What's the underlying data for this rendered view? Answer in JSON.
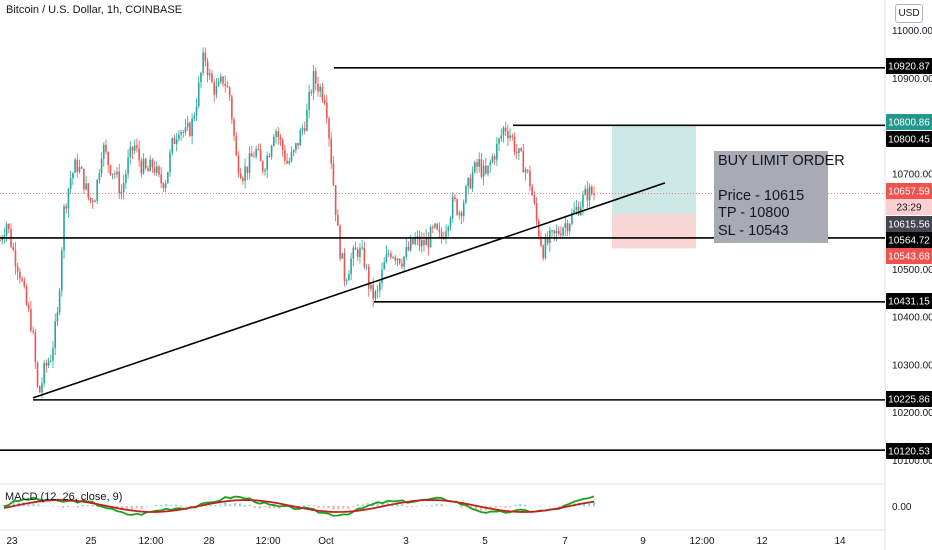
{
  "header": {
    "title": "Bitcoin / U.S. Dollar, 1h, COINBASE",
    "currency_button": "USD"
  },
  "macd_label": "MACD (12, 26, close, 9)",
  "order_box": {
    "title": "BUY LIMIT ORDER",
    "price": "Price - 10615",
    "tp": "TP - 10800",
    "sl": "SL - 10543"
  },
  "colors": {
    "up": "#26a69a",
    "down": "#ef5350",
    "line": "#000000",
    "target_zone": "#cce9e6",
    "stop_zone": "#f9d6d6",
    "tag_teal": "#22998c",
    "tag_red": "#ef5350",
    "tag_dark": "#434651",
    "macd_line": "#1aa31a",
    "signal_line": "#c21f1f"
  },
  "chart_data": {
    "type": "candlestick",
    "ylim": [
      10080,
      11060
    ],
    "y_ticks": [
      11000,
      10900,
      10800,
      10700,
      10600,
      10500,
      10400,
      10300,
      10200,
      10100
    ],
    "y_tick_labels": [
      "11000.00",
      "10900.00",
      "10800.00",
      "10700.00",
      "10600.00",
      "10500.00",
      "10400.00",
      "10300.00",
      "10200.00",
      "10100.00"
    ],
    "x_tick_labels": [
      "23",
      "25",
      "12:00",
      "28",
      "12:00",
      "Oct",
      "3",
      "5",
      "7",
      "9",
      "12:00",
      "12",
      "14"
    ],
    "price_levels": [
      10920.87,
      10800.86,
      10800.45,
      10564.72,
      10431.15,
      10225.86,
      10120.53
    ],
    "price_tags": [
      {
        "label": "10920.87",
        "value": 10920.87,
        "style": "line"
      },
      {
        "label": "10800.86",
        "value": 10800.86,
        "style": "teal"
      },
      {
        "label": "10800.45",
        "value": 10800.45,
        "style": "line"
      },
      {
        "label": "10657.59",
        "value": 10657.59,
        "style": "red"
      },
      {
        "label": "23:29",
        "value": 10631,
        "style": "red-light"
      },
      {
        "label": "10615.56",
        "value": 10615.56,
        "style": "dark"
      },
      {
        "label": "10564.72",
        "value": 10564.72,
        "style": "line"
      },
      {
        "label": "10543.68",
        "value": 10543.68,
        "style": "red"
      },
      {
        "label": "10431.15",
        "value": 10431.15,
        "style": "line"
      },
      {
        "label": "10225.86",
        "value": 10225.86,
        "style": "line"
      },
      {
        "label": "10120.53",
        "value": 10120.53,
        "style": "line"
      }
    ],
    "trendline": {
      "from": [
        10230
      ],
      "to": [
        10680
      ]
    },
    "current_price": 10657.59,
    "limit_order": {
      "entry": 10615,
      "take_profit": 10800,
      "stop_loss": 10543
    },
    "close_path": [
      10560,
      10600,
      10540,
      10500,
      10430,
      10380,
      10230,
      10290,
      10320,
      10400,
      10620,
      10690,
      10720,
      10690,
      10640,
      10660,
      10760,
      10720,
      10700,
      10660,
      10720,
      10760,
      10720,
      10700,
      10720,
      10680,
      10690,
      10760,
      10800,
      10780,
      10800,
      10870,
      10950,
      10890,
      10870,
      10900,
      10860,
      10730,
      10700,
      10720,
      10750,
      10710,
      10740,
      10800,
      10760,
      10720,
      10740,
      10780,
      10820,
      10900,
      10880,
      10860,
      10710,
      10560,
      10480,
      10520,
      10540,
      10520,
      10450,
      10440,
      10500,
      10540,
      10530,
      10520,
      10540,
      10560,
      10550,
      10560,
      10580,
      10560,
      10600,
      10640,
      10620,
      10660,
      10700,
      10720,
      10690,
      10730,
      10760,
      10800,
      10780,
      10740,
      10720,
      10680,
      10600,
      10540,
      10560,
      10570,
      10590,
      10600,
      10620,
      10640,
      10660,
      10657.59
    ],
    "macd": {
      "y_tick_label": "0.00",
      "series": [
        "MACD",
        "Signal"
      ]
    },
    "grid": false
  }
}
